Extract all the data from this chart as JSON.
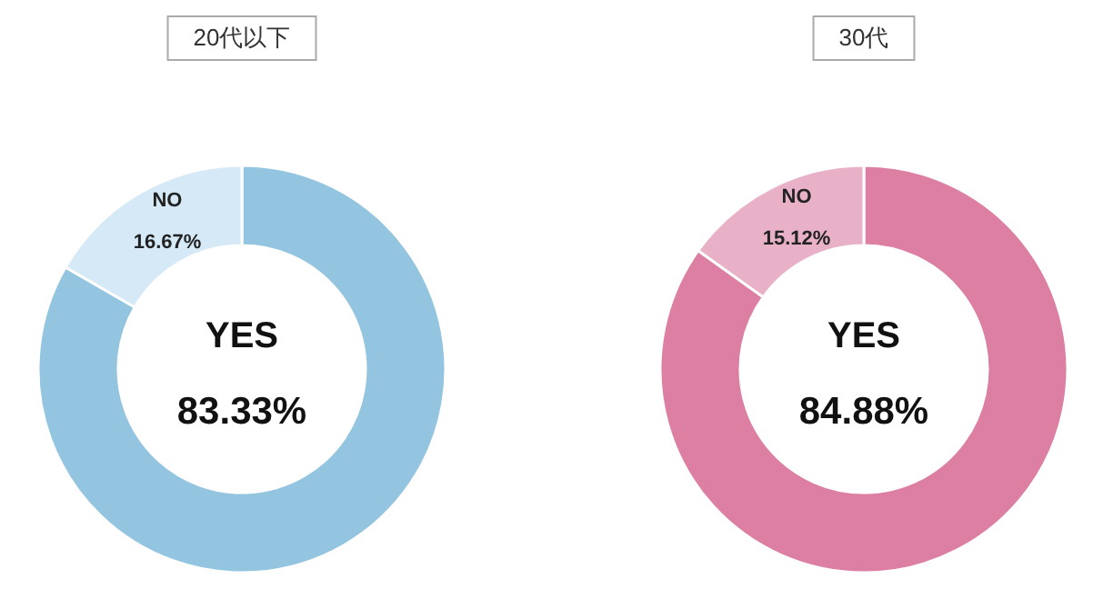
{
  "chart_data": [
    {
      "type": "donut",
      "title": "20代以下",
      "categories": [
        "YES",
        "NO"
      ],
      "values": [
        83.33,
        16.67
      ],
      "colors": [
        "#93c4e0",
        "#d5eaf6"
      ],
      "value_labels": [
        "83.33%",
        "16.67%"
      ]
    },
    {
      "type": "donut",
      "title": "30代",
      "categories": [
        "YES",
        "NO"
      ],
      "values": [
        84.88,
        15.12
      ],
      "colors": [
        "#dc7fa2",
        "#e9b1c7"
      ],
      "value_labels": [
        "84.88%",
        "15.12%"
      ]
    }
  ]
}
